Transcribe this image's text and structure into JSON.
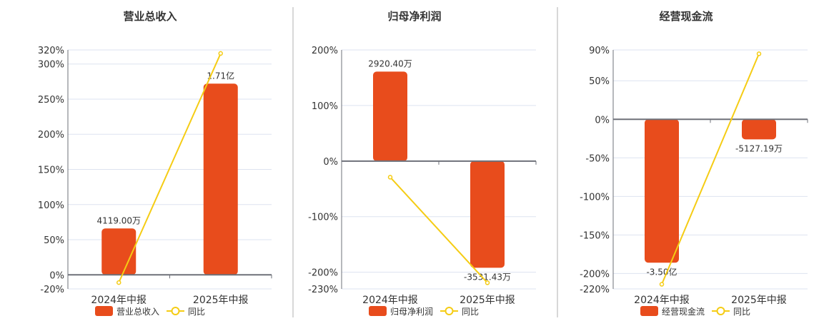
{
  "colors": {
    "bar": "#e84c1c",
    "line": "#f5cc14",
    "grid": "#dde3f0",
    "axis": "#6e7079",
    "text": "#333333",
    "divider": "#b0b0b0"
  },
  "chart_data": [
    {
      "type": "bar",
      "title": "营业总收入",
      "categories": [
        "2024年中报",
        "2025年中报"
      ],
      "ylim": [
        -20,
        320
      ],
      "yticks": [
        -20,
        0,
        50,
        100,
        150,
        200,
        250,
        300,
        320
      ],
      "ytick_labels": [
        "-20%",
        "0%",
        "50%",
        "100%",
        "150%",
        "200%",
        "250%",
        "300%",
        "320%"
      ],
      "series": [
        {
          "name": "营业总收入",
          "type": "bar",
          "values": [
            66,
            272
          ],
          "labels": [
            "4119.00万",
            "1.71亿"
          ]
        },
        {
          "name": "同比",
          "type": "line",
          "values": [
            -11,
            315
          ]
        }
      ],
      "grid": true,
      "legend": "bottom"
    },
    {
      "type": "bar",
      "title": "归母净利润",
      "categories": [
        "2024年中报",
        "2025年中报"
      ],
      "ylim": [
        -230,
        200
      ],
      "yticks": [
        -230,
        -200,
        -100,
        0,
        100,
        200
      ],
      "ytick_labels": [
        "-230%",
        "-200%",
        "-100%",
        "0%",
        "100%",
        "200%"
      ],
      "series": [
        {
          "name": "归母净利润",
          "type": "bar",
          "values": [
            161,
            -192
          ],
          "labels": [
            "2920.40万",
            "-3531.43万"
          ]
        },
        {
          "name": "同比",
          "type": "line",
          "values": [
            -29,
            -219
          ]
        }
      ],
      "grid": true,
      "legend": "bottom"
    },
    {
      "type": "bar",
      "title": "经营现金流",
      "categories": [
        "2024年中报",
        "2025年中报"
      ],
      "ylim": [
        -220,
        90
      ],
      "yticks": [
        -220,
        -200,
        -150,
        -100,
        -50,
        0,
        50,
        90
      ],
      "ytick_labels": [
        "-220%",
        "-200%",
        "-150%",
        "-100%",
        "-50%",
        "0%",
        "50%",
        "90%"
      ],
      "series": [
        {
          "name": "经营现金流",
          "type": "bar",
          "values": [
            -186,
            -26
          ],
          "labels": [
            "-3.50亿",
            "-5127.19万"
          ]
        },
        {
          "name": "同比",
          "type": "line",
          "values": [
            -214,
            85
          ]
        }
      ],
      "grid": true,
      "legend": "bottom"
    }
  ]
}
